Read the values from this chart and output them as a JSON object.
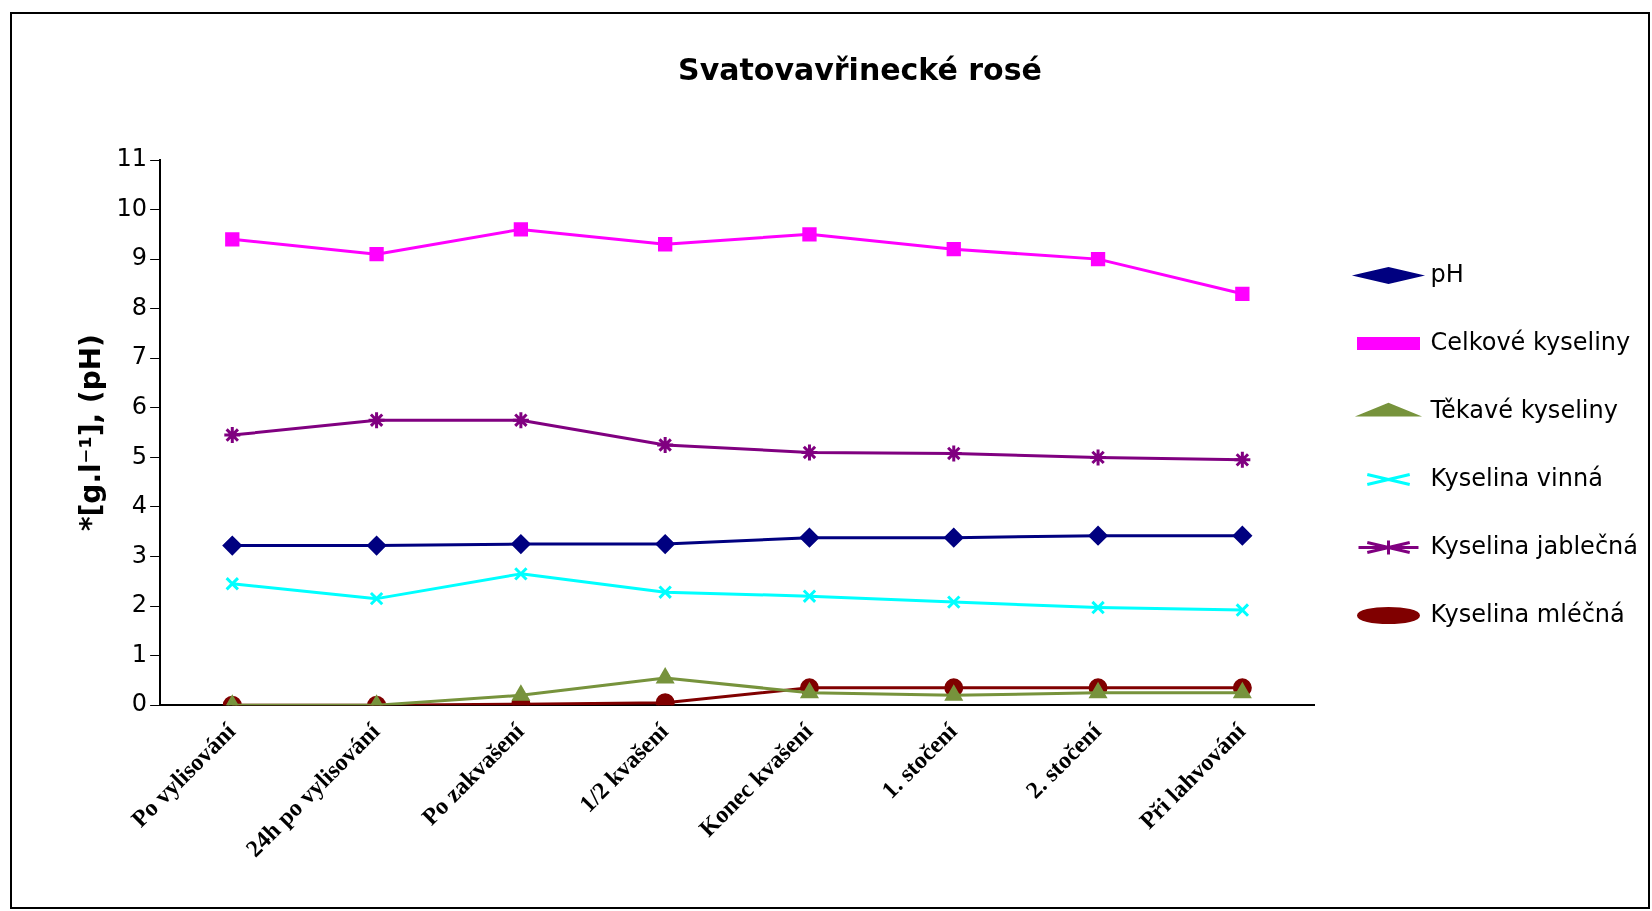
{
  "chart_data": {
    "type": "line",
    "title": "Svatovavřinecké rosé",
    "ylabel": "*[g.l⁻¹], (pH)",
    "categories": [
      "Po vylisování",
      "24h po vylisování",
      "Po zakvašení",
      "1/2 kvašení",
      "Konec kvašení",
      "1. stočení",
      "2. stočení",
      "Při lahvování"
    ],
    "series": [
      {
        "name": "pH",
        "color": "#000080",
        "marker": "diamond",
        "values": [
          3.22,
          3.22,
          3.25,
          3.25,
          3.38,
          3.38,
          3.42,
          3.42
        ]
      },
      {
        "name": "Celkové kyseliny",
        "color": "#ff00ff",
        "marker": "square",
        "values": [
          9.4,
          9.1,
          9.6,
          9.3,
          9.5,
          9.2,
          9.0,
          8.3
        ]
      },
      {
        "name": "Těkavé kyseliny",
        "color": "#77933c",
        "marker": "triangle",
        "values": [
          0,
          0,
          0.2,
          0.55,
          0.25,
          0.2,
          0.25,
          0.25
        ]
      },
      {
        "name": "Kyselina vinná",
        "color": "#00ffff",
        "marker": "cross",
        "values": [
          2.45,
          2.15,
          2.65,
          2.28,
          2.2,
          2.08,
          1.97,
          1.92
        ]
      },
      {
        "name": "Kyselina jablečná",
        "color": "#800080",
        "marker": "cross",
        "values": [
          5.45,
          5.75,
          5.75,
          5.25,
          5.1,
          5.08,
          5.0,
          4.95
        ]
      },
      {
        "name": "Kyselina mléčná",
        "color": "#800000",
        "marker": "circle",
        "values": [
          0,
          0,
          0.02,
          0.05,
          0.35,
          0.35,
          0.35,
          0.35
        ]
      }
    ],
    "ylim": [
      0,
      11
    ],
    "yticks": [
      0,
      1,
      2,
      3,
      4,
      5,
      6,
      7,
      8,
      9,
      10,
      11
    ],
    "grid": false,
    "legend": "right"
  }
}
